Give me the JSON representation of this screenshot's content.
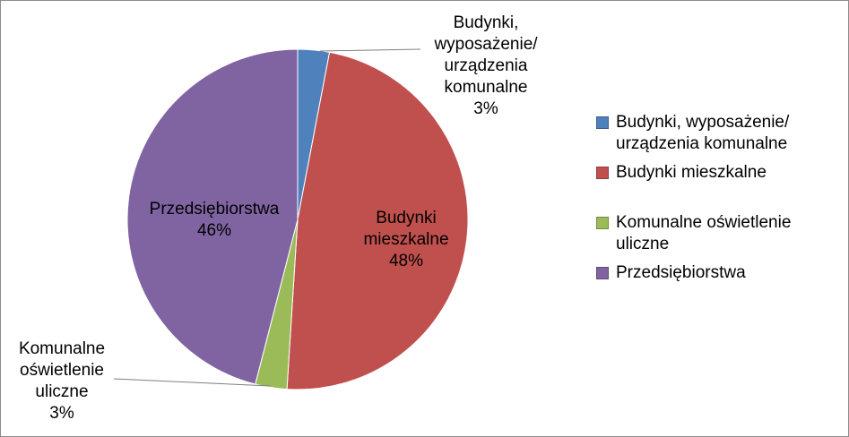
{
  "chart_data": {
    "type": "pie",
    "slices": [
      {
        "name": "Budynki, wyposażenie/ urządzenia komunalne",
        "value": 3,
        "label": "3%",
        "color": "#4f81bd",
        "data_label_lines": [
          "Budynki,",
          "wyposażenie/",
          "urządzenia",
          "komunalne",
          "3%"
        ]
      },
      {
        "name": "Budynki mieszkalne",
        "value": 48,
        "label": "48%",
        "color": "#c0504d",
        "data_label_lines": [
          "Budynki",
          "mieszkalne",
          "48%"
        ]
      },
      {
        "name": "Komunalne oświetlenie uliczne",
        "value": 3,
        "label": "3%",
        "color": "#9bbb59",
        "data_label_lines": [
          "Komunalne",
          "oświetlenie",
          "uliczne",
          "3%"
        ]
      },
      {
        "name": "Przedsiębiorstwa",
        "value": 46,
        "label": "46%",
        "color": "#8064a2",
        "data_label_lines": [
          "Przedsiębiorstwa",
          "46%"
        ]
      }
    ],
    "legend": {
      "position": "right",
      "items": [
        {
          "label": "Budynki, wyposażenie/ urządzenia komunalne",
          "color": "#4f81bd"
        },
        {
          "label": "Budynki mieszkalne",
          "color": "#c0504d"
        },
        {
          "label": "Komunalne oświetlenie uliczne",
          "color": "#9bbb59"
        },
        {
          "label": "Przedsiębiorstwa",
          "color": "#8064a2"
        }
      ]
    }
  }
}
